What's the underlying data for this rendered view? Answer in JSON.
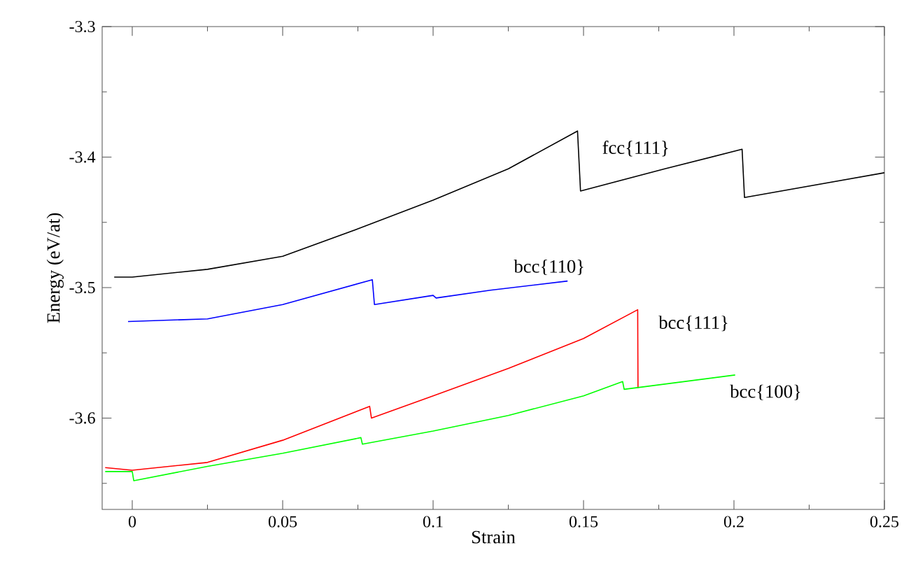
{
  "chart_data": {
    "type": "line",
    "xlabel": "Strain",
    "ylabel": "Energy (eV/at)",
    "xlim": [
      -0.01,
      0.25
    ],
    "ylim": [
      -3.67,
      -3.3
    ],
    "xticks": [
      0,
      {
        "value": 0.025,
        "label": null
      },
      0.05,
      {
        "value": 0.075,
        "label": null
      },
      0.1,
      {
        "value": 0.125,
        "label": null
      },
      0.15,
      {
        "value": 0.175,
        "label": null
      },
      0.2,
      {
        "value": 0.225,
        "label": null
      },
      0.25
    ],
    "yticks": [
      {
        "value": -3.65,
        "label": null
      },
      -3.6,
      {
        "value": -3.55,
        "label": null
      },
      -3.5,
      {
        "value": -3.45,
        "label": null
      },
      -3.4,
      {
        "value": -3.35,
        "label": null
      },
      -3.3
    ],
    "grid": false,
    "legend": false,
    "marker": "none",
    "line_style": "solid",
    "series": [
      {
        "name": "fcc{111}",
        "color": "#000000",
        "x": [
          -0.006,
          0,
          0.025,
          0.05,
          0.075,
          0.1,
          0.125,
          0.148,
          0.149,
          0.177,
          0.2027,
          0.2035,
          0.25
        ],
        "values": [
          -3.492,
          -3.492,
          -3.486,
          -3.476,
          -3.455,
          -3.433,
          -3.409,
          -3.38,
          -3.426,
          -3.409,
          -3.394,
          -3.431,
          -3.412
        ]
      },
      {
        "name": "bcc{110}",
        "color": "#0000ff",
        "x": [
          -0.0014,
          0.025,
          0.05,
          0.0798,
          0.0805,
          0.1,
          0.101,
          0.119,
          0.1447
        ],
        "values": [
          -3.526,
          -3.524,
          -3.513,
          -3.494,
          -3.513,
          -3.506,
          -3.508,
          -3.502,
          -3.495
        ]
      },
      {
        "name": "bcc{111}",
        "color": "#ff0000",
        "x": [
          -0.009,
          0,
          0.025,
          0.05,
          0.0789,
          0.0795,
          0.1,
          0.125,
          0.15,
          0.168,
          0.1681
        ],
        "values": [
          -3.638,
          -3.64,
          -3.634,
          -3.617,
          -3.591,
          -3.6,
          -3.583,
          -3.562,
          -3.539,
          -3.517,
          -3.577
        ]
      },
      {
        "name": "bcc{100}",
        "color": "#00ff00",
        "x": [
          -0.009,
          0,
          0.0005,
          0.025,
          0.05,
          0.076,
          0.0765,
          0.1,
          0.125,
          0.15,
          0.163,
          0.1635,
          0.2004
        ],
        "values": [
          -3.641,
          -3.641,
          -3.648,
          -3.637,
          -3.627,
          -3.615,
          -3.62,
          -3.61,
          -3.598,
          -3.583,
          -3.572,
          -3.578,
          -3.567
        ]
      }
    ]
  }
}
